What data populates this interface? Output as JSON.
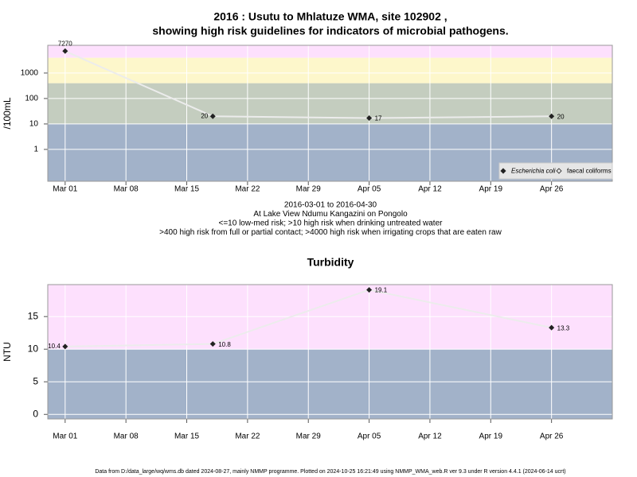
{
  "chart_data": [
    {
      "type": "line",
      "title": [
        "2016 : Usutu to Mhlatuze WMA, site 102902 ,",
        "showing high risk guidelines for indicators of microbial pathogens."
      ],
      "notes": [
        "2016-03-01 to 2016-04-30",
        "At Lake View Ndumu Kangazini on Pongolo",
        "<=10 low-med risk; >10 high risk when drinking untreated water",
        ">400 high risk from full or partial contact; >4000 high risk when irrigating crops that are eaten raw"
      ],
      "ylabel": "/100mL",
      "log_scale": true,
      "grid": true,
      "x": [
        "2016-03-01",
        "2016-03-18",
        "2016-04-05",
        "2016-04-26"
      ],
      "series": [
        {
          "name": "Escherichia coli",
          "color": "#222222",
          "values": [
            7270,
            20,
            17,
            20
          ]
        },
        {
          "name": "faecal coliforms",
          "color": "#222222",
          "values": [
            null,
            null,
            null,
            null
          ]
        }
      ],
      "xlim": [
        "2016-02-28",
        "2016-05-03"
      ],
      "xticks": [
        {
          "value": "2016-03-01",
          "label": "Mar 01"
        },
        {
          "value": "2016-03-08",
          "label": "Mar 08"
        },
        {
          "value": "2016-03-15",
          "label": "Mar 15"
        },
        {
          "value": "2016-03-22",
          "label": "Mar 22"
        },
        {
          "value": "2016-03-29",
          "label": "Mar 29"
        },
        {
          "value": "2016-04-05",
          "label": "Apr 05"
        },
        {
          "value": "2016-04-12",
          "label": "Apr 12"
        },
        {
          "value": "2016-04-19",
          "label": "Apr 19"
        },
        {
          "value": "2016-04-26",
          "label": "Apr 26"
        }
      ],
      "ylim": [
        0.056,
        12300
      ],
      "yticks": [
        1,
        10,
        100,
        1000
      ],
      "band_limits": [
        10,
        400,
        4000
      ],
      "band_colors": [
        "#a2b2c9",
        "#c4cdbf",
        "#fdf7cb",
        "#fde0fd"
      ]
    },
    {
      "type": "line",
      "title": [
        "Turbidity"
      ],
      "ylabel": "NTU",
      "log_scale": false,
      "grid": true,
      "x": [
        "2016-03-01",
        "2016-03-18",
        "2016-04-05",
        "2016-04-26"
      ],
      "series": [
        {
          "name": "Turbidity",
          "color": "#222222",
          "values": [
            10.4,
            10.8,
            19.1,
            13.3
          ]
        }
      ],
      "xlim": [
        "2016-02-28",
        "2016-05-03"
      ],
      "xticks": [
        {
          "value": "2016-03-01",
          "label": "Mar 01"
        },
        {
          "value": "2016-03-08",
          "label": "Mar 08"
        },
        {
          "value": "2016-03-15",
          "label": "Mar 15"
        },
        {
          "value": "2016-03-22",
          "label": "Mar 22"
        },
        {
          "value": "2016-03-29",
          "label": "Mar 29"
        },
        {
          "value": "2016-04-05",
          "label": "Apr 05"
        },
        {
          "value": "2016-04-12",
          "label": "Apr 12"
        },
        {
          "value": "2016-04-19",
          "label": "Apr 19"
        },
        {
          "value": "2016-04-26",
          "label": "Apr 26"
        }
      ],
      "ylim": [
        -0.7,
        19.9
      ],
      "yticks": [
        0,
        5,
        10,
        15
      ],
      "band_limits": [
        10
      ],
      "band_colors": [
        "#a2b2c9",
        "#fde0fd"
      ]
    }
  ],
  "footer": "Data from D:/data_large/wq/wms.db dated 2024-08-27, mainly NMMP programme. Plotted on 2024-10-25 16:21:49 using NMMP_WMA_web.R ver 9.3 under R version 4.4.1 (2024-06-14 ucrt)"
}
